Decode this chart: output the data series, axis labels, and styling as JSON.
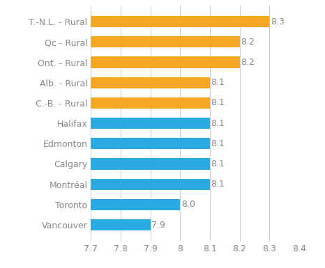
{
  "categories": [
    "T.-N.L. - Rural",
    "Qc - Rural",
    "Ont. - Rural",
    "Alb. - Rural",
    "C.-B. - Rural",
    "Halifax",
    "Edmonton",
    "Calgary",
    "Montréal",
    "Toronto",
    "Vancouver"
  ],
  "values": [
    8.3,
    8.2,
    8.2,
    8.1,
    8.1,
    8.1,
    8.1,
    8.1,
    8.1,
    8.0,
    7.9
  ],
  "colors": [
    "#f5a623",
    "#f5a623",
    "#f5a623",
    "#f5a623",
    "#f5a623",
    "#29abe2",
    "#29abe2",
    "#29abe2",
    "#29abe2",
    "#29abe2",
    "#29abe2"
  ],
  "xlim": [
    7.7,
    8.4
  ],
  "xticks": [
    7.7,
    7.8,
    7.9,
    8.0,
    8.1,
    8.2,
    8.3,
    8.4
  ],
  "xtick_labels": [
    "7.7",
    "7.8",
    "7.9",
    "8",
    "8.1",
    "8.2",
    "8.3",
    "8.4"
  ],
  "bar_height": 0.55,
  "label_color": "#888888",
  "label_fontsize": 9,
  "tick_fontsize": 9,
  "background_color": "#ffffff",
  "grid_color": "#cccccc",
  "value_labels": [
    "8.3",
    "8.2",
    "8.2",
    "8.1",
    "8.1",
    "8.1",
    "8.1",
    "8.1",
    "8.1",
    "8.0",
    "7.9"
  ]
}
